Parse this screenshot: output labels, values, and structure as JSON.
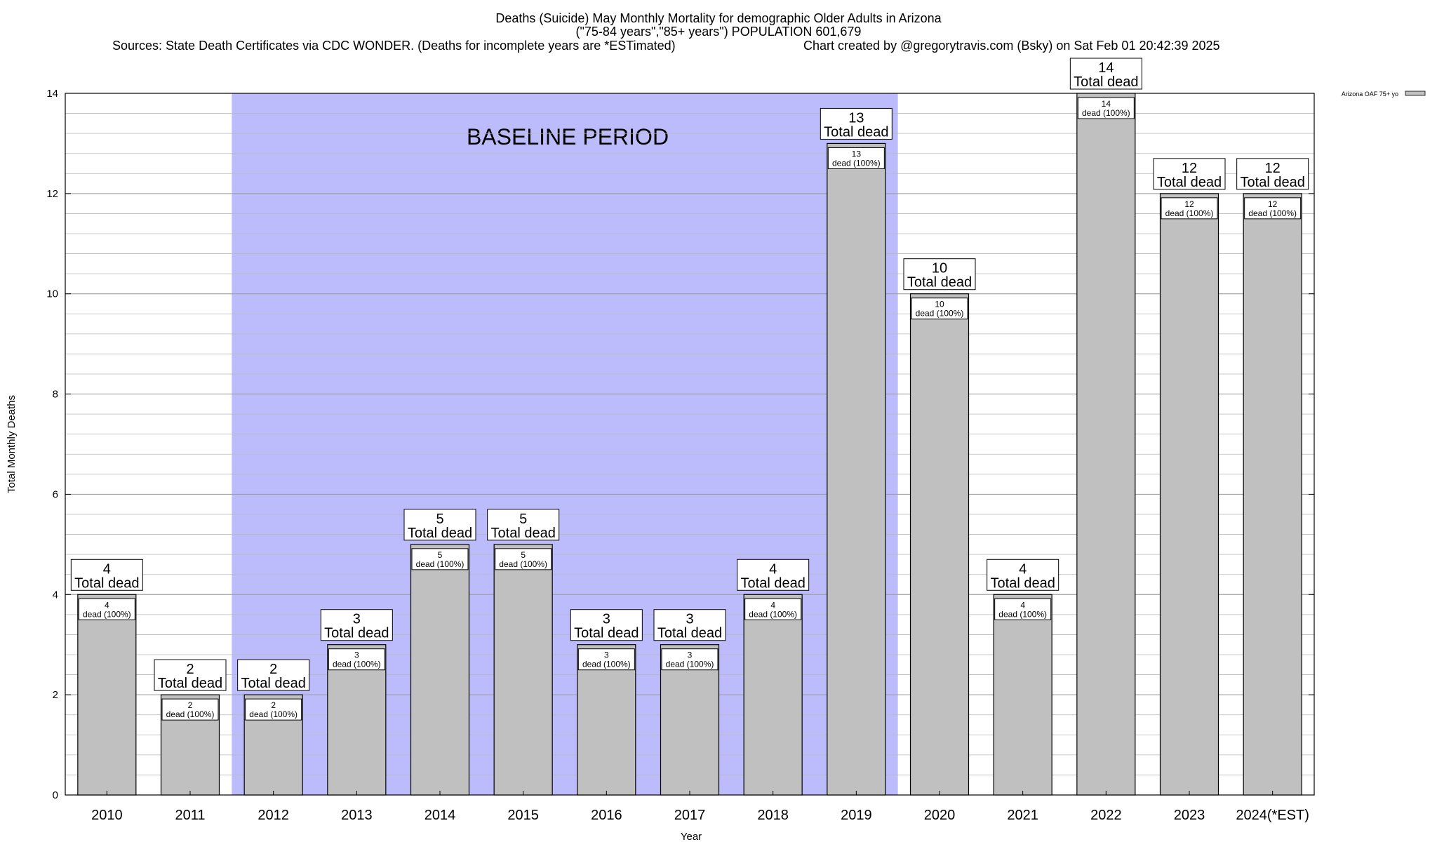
{
  "chart_data": {
    "type": "bar",
    "title_lines": [
      "Deaths (Suicide) May Monthly Mortality for demographic Older Adults in Arizona",
      "(\"75-84 years\",\"85+ years\") POPULATION 601,679"
    ],
    "source_text": "Sources: State Death Certificates via CDC WONDER. (Deaths for incomplete years are *ESTimated)",
    "credit_text": "Chart created by @gregorytravis.com (Bsky) on Sat Feb 01 20:42:39 2025",
    "xlabel": "Year",
    "ylabel": "Total Monthly Deaths",
    "ylim": [
      0,
      14
    ],
    "y_ticks": [
      0,
      2,
      4,
      6,
      8,
      10,
      12,
      14
    ],
    "minor_step": 0.4,
    "categories": [
      "2010",
      "2011",
      "2012",
      "2013",
      "2014",
      "2015",
      "2016",
      "2017",
      "2018",
      "2019",
      "2020",
      "2021",
      "2022",
      "2023",
      "2024(*EST)"
    ],
    "values": [
      4,
      2,
      2,
      3,
      5,
      5,
      3,
      3,
      4,
      13,
      10,
      4,
      14,
      12,
      12
    ],
    "total_label_suffix": "Total dead",
    "inner_label_suffix": "dead (100%)",
    "baseline": {
      "label": "BASELINE PERIOD",
      "from_index": 2,
      "to_index": 9,
      "color": "#bcbcfc"
    },
    "bar_color": "#c0c0c0",
    "legend": [
      {
        "name": "Arizona OAF 75+ yo",
        "color": "#c0c0c0"
      }
    ]
  }
}
